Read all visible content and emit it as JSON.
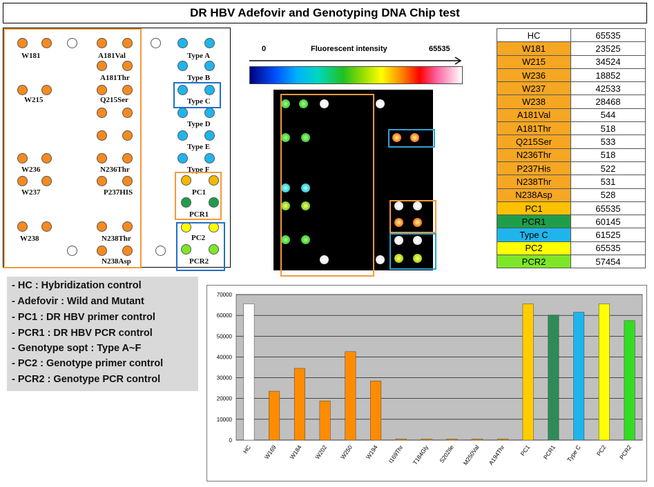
{
  "title": "DR HBV  Adefovir and Genotyping DNA Chip test",
  "layout": {
    "labels": [
      "W181",
      "A181Val",
      "Type A",
      "A181Thr",
      "Type B",
      "W215",
      "Q215Ser",
      "Type C",
      "Type D",
      "Type E",
      "W236",
      "N236Thr",
      "Type F",
      "W237",
      "P237HIS",
      "PC1",
      "PCR1",
      "W238",
      "N238Thr",
      "PC2",
      "N238Asp",
      "PCR2"
    ]
  },
  "scale": {
    "min": "0",
    "label": "Fluorescent intensity",
    "max": "65535"
  },
  "table": [
    {
      "name": "HC",
      "value": "65535",
      "color": "#ffffff"
    },
    {
      "name": "W181",
      "value": "23525",
      "color": "#f5a623"
    },
    {
      "name": "W215",
      "value": "34524",
      "color": "#f5a623"
    },
    {
      "name": "W236",
      "value": "18852",
      "color": "#f5a623"
    },
    {
      "name": "W237",
      "value": "42533",
      "color": "#f5a623"
    },
    {
      "name": "W238",
      "value": "28468",
      "color": "#f5a623"
    },
    {
      "name": "A181Val",
      "value": "544",
      "color": "#f5a623"
    },
    {
      "name": "A181Thr",
      "value": "518",
      "color": "#f5a623"
    },
    {
      "name": "Q215Ser",
      "value": "533",
      "color": "#f5a623"
    },
    {
      "name": "N236Thr",
      "value": "518",
      "color": "#f5a623"
    },
    {
      "name": "P237His",
      "value": "522",
      "color": "#f5a623"
    },
    {
      "name": "N238Thr",
      "value": "531",
      "color": "#f5a623"
    },
    {
      "name": "N238Asp",
      "value": "528",
      "color": "#f5a623"
    },
    {
      "name": "PC1",
      "value": "65535",
      "color": "#ffc000"
    },
    {
      "name": "PCR1",
      "value": "60145",
      "color": "#1e9e4a"
    },
    {
      "name": "Type C",
      "value": "61525",
      "color": "#1fb5ec"
    },
    {
      "name": "PC2",
      "value": "65535",
      "color": "#ffff00"
    },
    {
      "name": "PCR2",
      "value": "57454",
      "color": "#7ee629"
    }
  ],
  "legend": [
    "- HC : Hybridization control",
    "- Adefovir  : Wild and Mutant",
    "- PC1 :  DR HBV primer control",
    "- PCR1 : DR HBV PCR control",
    "- Genotype sopt :  Type A~F",
    "- PC2    : Genotype primer control",
    "- PCR2 : Genotype PCR control"
  ],
  "chart_data": {
    "type": "bar",
    "categories": [
      "HC",
      "W169",
      "W184",
      "W202",
      "W250",
      "W194",
      "I169Thr",
      "T184Gly",
      "S202Ile",
      "M250Val",
      "A194Thr",
      "PC1",
      "PCR1",
      "Type C",
      "PC2",
      "PCR2"
    ],
    "values": [
      65535,
      23525,
      34524,
      18852,
      42533,
      28468,
      544,
      518,
      533,
      518,
      522,
      65535,
      60145,
      61525,
      65535,
      57454
    ],
    "colors": [
      "#ffffff",
      "#ff8c00",
      "#ff8c00",
      "#ff8c00",
      "#ff8c00",
      "#ff8c00",
      "#ff8c00",
      "#ff8c00",
      "#ff8c00",
      "#ff8c00",
      "#ff8c00",
      "#ffcc00",
      "#2e8b57",
      "#1fb5ec",
      "#ffff00",
      "#33dd22"
    ],
    "yticks": [
      "0",
      "10000",
      "20000",
      "30000",
      "40000",
      "50000",
      "60000",
      "70000"
    ],
    "ylim": [
      0,
      70000
    ],
    "grid": true,
    "background": "#c0c0c0"
  }
}
